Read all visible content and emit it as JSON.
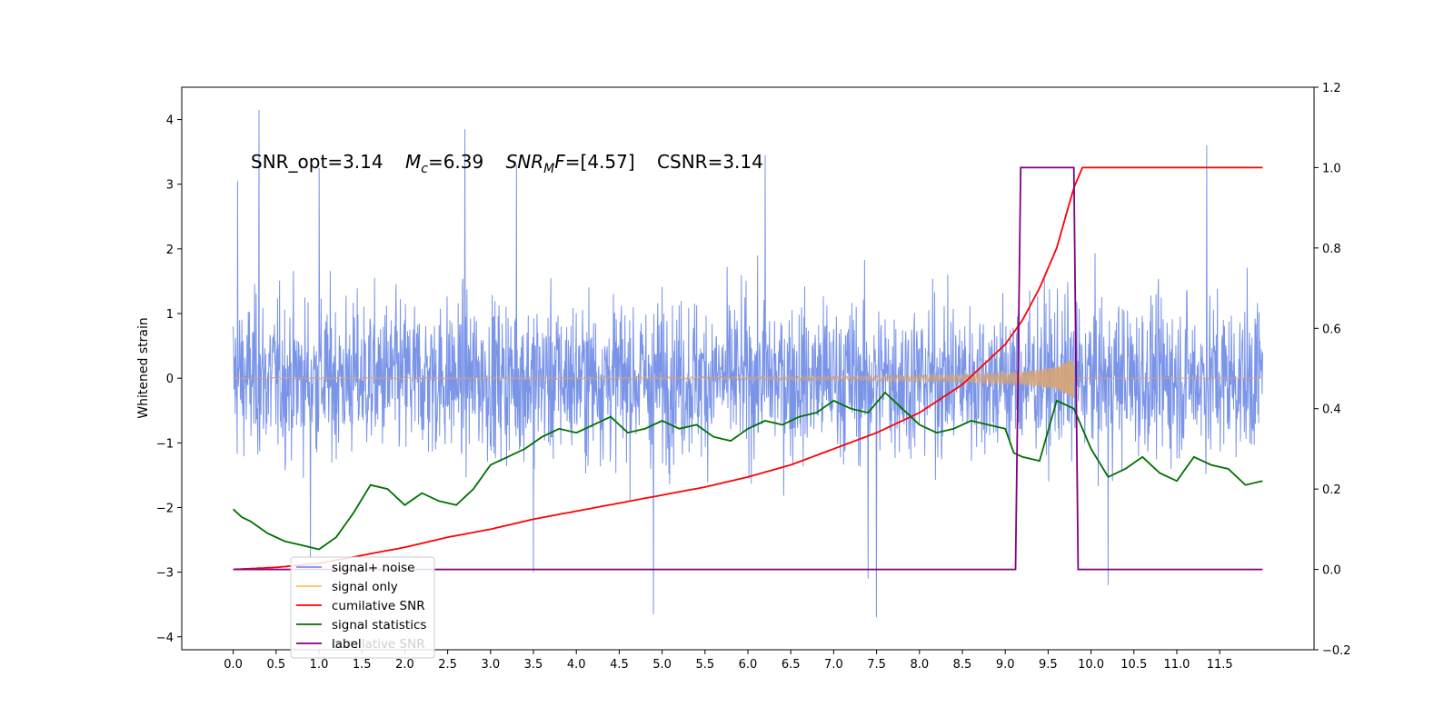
{
  "chart_data": {
    "type": "line",
    "title": "",
    "xlabel": "",
    "ylabel": "Whitened strain",
    "xlim": [
      -0.6,
      12.6
    ],
    "ylim": [
      -4.2,
      4.5
    ],
    "y2lim": [
      -0.2,
      1.2
    ],
    "grid": false,
    "legend_position": "lower-left",
    "x_ticks": [
      "0.0",
      "0.5",
      "1.0",
      "1.5",
      "2.0",
      "2.5",
      "3.0",
      "3.5",
      "4.0",
      "4.5",
      "5.0",
      "5.5",
      "6.0",
      "6.5",
      "7.0",
      "7.5",
      "8.0",
      "8.5",
      "9.0",
      "9.5",
      "10.0",
      "10.5",
      "11.0",
      "11.5"
    ],
    "y_ticks": [
      "−4",
      "−3",
      "−2",
      "−1",
      "0",
      "1",
      "2",
      "3",
      "4"
    ],
    "y2_ticks": [
      "−0.2",
      "0.0",
      "0.2",
      "0.4",
      "0.6",
      "0.8",
      "1.0",
      "1.2"
    ],
    "annotation": {
      "snr_opt": "SNR_opt=3.14",
      "mc_sym": "M",
      "mc_sub": "c",
      "mc_val": "=6.39",
      "mf_sym": "SNR",
      "mf_sub": "M",
      "mf_sym2": "F",
      "mf_val": "=[4.57]",
      "csnr": "CSNR=3.14"
    },
    "legend": [
      {
        "label": "signal+ noise",
        "color": "#7a94e8"
      },
      {
        "label": "signal only",
        "color": "#ffc064"
      },
      {
        "label": "cumilative SNR",
        "color": "#ff0000"
      },
      {
        "label": "signal statistics",
        "color": "#007000"
      },
      {
        "label": "label",
        "color": "#800080"
      }
    ],
    "hidden_legend_text": "cumilative SNR",
    "series": [
      {
        "name": "signal+ noise",
        "axis": "left",
        "color": "#7a94e8",
        "x_range": [
          0,
          12
        ],
        "envelope_typical": [
          -1.6,
          1.8
        ],
        "spikes": [
          [
            0.3,
            4.15
          ],
          [
            2.7,
            3.85
          ],
          [
            11.35,
            3.6
          ],
          [
            6.2,
            3.45
          ],
          [
            3.3,
            3.3
          ],
          [
            1.0,
            3.25
          ],
          [
            0.05,
            3.05
          ],
          [
            4.9,
            -3.65
          ],
          [
            7.5,
            -3.7
          ],
          [
            10.2,
            -3.2
          ],
          [
            7.4,
            -3.1
          ],
          [
            3.5,
            -3.0
          ],
          [
            0.9,
            -2.8
          ]
        ]
      },
      {
        "name": "signal only",
        "axis": "left",
        "color": "#ffc064",
        "chirp_end": 9.8,
        "amp_points": [
          [
            0,
            0.01
          ],
          [
            4.0,
            0.015
          ],
          [
            6.0,
            0.025
          ],
          [
            7.5,
            0.04
          ],
          [
            8.5,
            0.06
          ],
          [
            9.2,
            0.1
          ],
          [
            9.6,
            0.17
          ],
          [
            9.8,
            0.32
          ],
          [
            9.85,
            0.0
          ],
          [
            12.0,
            0.0
          ]
        ]
      },
      {
        "name": "cumilative SNR",
        "axis": "right",
        "color": "#ff0000",
        "x": [
          0,
          0.5,
          1.0,
          1.5,
          2.0,
          2.5,
          3.0,
          3.5,
          4.0,
          4.5,
          5.0,
          5.5,
          6.0,
          6.5,
          7.0,
          7.5,
          8.0,
          8.5,
          9.0,
          9.2,
          9.4,
          9.6,
          9.8,
          9.9,
          12.0
        ],
        "values": [
          0.0,
          0.005,
          0.015,
          0.035,
          0.055,
          0.08,
          0.1,
          0.125,
          0.145,
          0.165,
          0.185,
          0.205,
          0.23,
          0.26,
          0.3,
          0.34,
          0.39,
          0.46,
          0.56,
          0.62,
          0.7,
          0.8,
          0.95,
          1.0,
          1.0
        ]
      },
      {
        "name": "signal statistics",
        "axis": "right",
        "color": "#007000",
        "x": [
          0,
          0.1,
          0.2,
          0.4,
          0.6,
          0.8,
          1.0,
          1.2,
          1.4,
          1.6,
          1.8,
          2.0,
          2.2,
          2.4,
          2.6,
          2.8,
          3.0,
          3.2,
          3.4,
          3.6,
          3.8,
          4.0,
          4.2,
          4.4,
          4.6,
          4.8,
          5.0,
          5.2,
          5.4,
          5.6,
          5.8,
          6.0,
          6.2,
          6.4,
          6.6,
          6.8,
          7.0,
          7.2,
          7.4,
          7.6,
          7.8,
          8.0,
          8.2,
          8.4,
          8.6,
          8.8,
          9.0,
          9.1,
          9.2,
          9.4,
          9.6,
          9.8,
          10.0,
          10.2,
          10.4,
          10.6,
          10.8,
          11.0,
          11.2,
          11.4,
          11.6,
          11.8,
          12.0
        ],
        "values": [
          0.15,
          0.13,
          0.12,
          0.09,
          0.07,
          0.06,
          0.05,
          0.08,
          0.14,
          0.21,
          0.2,
          0.16,
          0.19,
          0.17,
          0.16,
          0.2,
          0.26,
          0.28,
          0.3,
          0.33,
          0.35,
          0.34,
          0.36,
          0.38,
          0.34,
          0.35,
          0.37,
          0.35,
          0.36,
          0.33,
          0.32,
          0.35,
          0.37,
          0.36,
          0.38,
          0.39,
          0.42,
          0.4,
          0.39,
          0.44,
          0.4,
          0.36,
          0.34,
          0.35,
          0.37,
          0.36,
          0.35,
          0.29,
          0.28,
          0.27,
          0.42,
          0.4,
          0.3,
          0.23,
          0.25,
          0.28,
          0.24,
          0.22,
          0.28,
          0.26,
          0.25,
          0.21,
          0.22
        ]
      },
      {
        "name": "label",
        "axis": "right",
        "color": "#800080",
        "x": [
          0,
          9.12,
          9.18,
          9.8,
          9.85,
          12.0
        ],
        "values": [
          0,
          0,
          1,
          1,
          0,
          0
        ]
      }
    ]
  }
}
